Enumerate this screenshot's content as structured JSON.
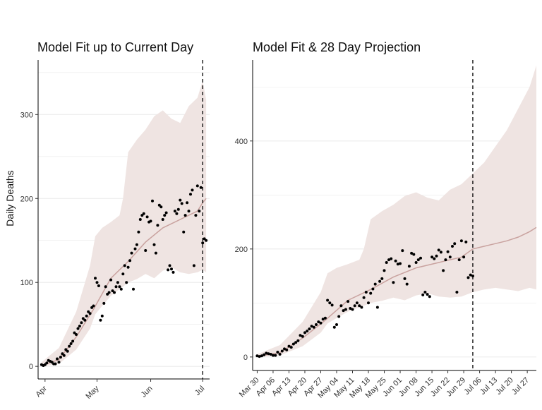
{
  "chart_data": [
    {
      "type": "line",
      "title": "Model Fit up to Current Day",
      "ylabel": "Daily Deaths",
      "xlabel": "",
      "x_tick_labels": [
        "Apr",
        "May",
        "Jun",
        "Jul"
      ],
      "x_tick_days": [
        2,
        32,
        63,
        93
      ],
      "y_ticks": [
        0,
        100,
        200,
        300
      ],
      "xlim_days": [
        -2,
        97
      ],
      "ylim": [
        -15,
        365
      ],
      "current_day": 93,
      "grid": "horizontal",
      "colors": {
        "band": "#efe4e2",
        "median": "#c9a29f",
        "points": "#000000",
        "grid": "#ebebeb"
      },
      "observed": {
        "x": [
          0,
          1,
          2,
          3,
          4,
          5,
          6,
          7,
          8,
          9,
          10,
          11,
          12,
          13,
          14,
          15,
          16,
          17,
          18,
          19,
          20,
          21,
          22,
          23,
          24,
          25,
          26,
          27,
          28,
          29,
          30,
          31,
          32,
          33,
          34,
          35,
          36,
          37,
          38,
          39,
          40,
          41,
          42,
          43,
          44,
          45,
          46,
          47,
          48,
          49,
          50,
          51,
          52,
          53,
          54,
          55,
          56,
          57,
          58,
          59,
          60,
          61,
          62,
          63,
          64,
          65,
          66,
          67,
          68,
          69,
          70,
          71,
          72,
          73,
          74,
          75,
          76,
          77,
          78,
          79,
          80,
          81,
          82,
          83,
          84,
          85,
          86,
          87,
          88,
          89,
          90,
          91,
          92,
          93,
          94,
          95
        ],
        "y": [
          2,
          1,
          2,
          4,
          7,
          6,
          5,
          3,
          3,
          9,
          5,
          11,
          15,
          13,
          20,
          18,
          24,
          27,
          30,
          40,
          38,
          45,
          48,
          52,
          57,
          55,
          60,
          65,
          63,
          70,
          72,
          105,
          100,
          96,
          55,
          60,
          75,
          95,
          86,
          88,
          103,
          90,
          88,
          95,
          100,
          95,
          92,
          110,
          120,
          100,
          118,
          126,
          135,
          92,
          140,
          145,
          160,
          175,
          180,
          182,
          138,
          178,
          172,
          173,
          197,
          145,
          135,
          168,
          192,
          190,
          175,
          180,
          183,
          115,
          120,
          116,
          112,
          185,
          182,
          187,
          198,
          194,
          160,
          180,
          195,
          185,
          205,
          210,
          120,
          180,
          215,
          185,
          213,
          147,
          152,
          150
        ]
      },
      "median": {
        "x": [
          0,
          10,
          20,
          30,
          40,
          50,
          60,
          70,
          80,
          85,
          90,
          93,
          95
        ],
        "y": [
          1,
          8,
          35,
          68,
          105,
          125,
          148,
          165,
          175,
          180,
          185,
          195,
          200
        ]
      },
      "band": {
        "x": [
          0,
          10,
          20,
          28,
          31,
          35,
          40,
          45,
          47,
          50,
          55,
          60,
          65,
          70,
          75,
          80,
          85,
          90,
          93,
          95
        ],
        "lower": [
          0,
          3,
          20,
          45,
          62,
          72,
          84,
          92,
          95,
          100,
          104,
          110,
          105,
          114,
          118,
          112,
          110,
          112,
          115,
          112
        ],
        "upper": [
          5,
          22,
          65,
          120,
          155,
          165,
          172,
          180,
          200,
          255,
          270,
          282,
          298,
          305,
          295,
          290,
          310,
          320,
          340,
          318
        ]
      }
    },
    {
      "type": "line",
      "title": "Model Fit & 28 Day Projection",
      "ylabel": "",
      "xlabel": "",
      "x_tick_labels": [
        "Mar 30",
        "Apr 06",
        "Apr 13",
        "Apr 20",
        "Apr 27",
        "May 04",
        "May 11",
        "May 18",
        "May 25",
        "Jun 01",
        "Jun 08",
        "Jun 15",
        "Jun 22",
        "Jun 29",
        "Jul 06",
        "Jul 13",
        "Jul 20",
        "Jul 27"
      ],
      "x_tick_days": [
        0,
        7,
        14,
        21,
        28,
        35,
        42,
        49,
        56,
        63,
        70,
        77,
        84,
        91,
        98,
        105,
        112,
        119
      ],
      "y_ticks": [
        0,
        200,
        400
      ],
      "xlim_days": [
        -2,
        123
      ],
      "ylim": [
        -25,
        550
      ],
      "current_day": 95,
      "grid": "horizontal",
      "colors": {
        "band": "#efe4e2",
        "median": "#c9a29f",
        "points": "#000000",
        "grid": "#ebebeb"
      },
      "observed": {
        "x": [
          0,
          1,
          2,
          3,
          4,
          5,
          6,
          7,
          8,
          9,
          10,
          11,
          12,
          13,
          14,
          15,
          16,
          17,
          18,
          19,
          20,
          21,
          22,
          23,
          24,
          25,
          26,
          27,
          28,
          29,
          30,
          31,
          32,
          33,
          34,
          35,
          36,
          37,
          38,
          39,
          40,
          41,
          42,
          43,
          44,
          45,
          46,
          47,
          48,
          49,
          50,
          51,
          52,
          53,
          54,
          55,
          56,
          57,
          58,
          59,
          60,
          61,
          62,
          63,
          64,
          65,
          66,
          67,
          68,
          69,
          70,
          71,
          72,
          73,
          74,
          75,
          76,
          77,
          78,
          79,
          80,
          81,
          82,
          83,
          84,
          85,
          86,
          87,
          88,
          89,
          90,
          91,
          92,
          93,
          94,
          95
        ],
        "y": [
          2,
          1,
          2,
          4,
          7,
          6,
          5,
          3,
          3,
          9,
          5,
          11,
          15,
          13,
          20,
          18,
          24,
          27,
          30,
          40,
          38,
          45,
          48,
          52,
          57,
          55,
          60,
          65,
          63,
          70,
          72,
          105,
          100,
          96,
          55,
          60,
          75,
          95,
          86,
          88,
          103,
          90,
          88,
          95,
          100,
          95,
          92,
          110,
          120,
          100,
          118,
          126,
          135,
          92,
          140,
          145,
          160,
          175,
          180,
          182,
          138,
          178,
          172,
          173,
          197,
          145,
          135,
          168,
          192,
          190,
          175,
          180,
          183,
          115,
          120,
          116,
          112,
          185,
          182,
          187,
          198,
          194,
          160,
          180,
          195,
          185,
          205,
          210,
          120,
          180,
          215,
          185,
          213,
          147,
          152,
          150
        ]
      },
      "median": {
        "x": [
          0,
          10,
          20,
          30,
          40,
          50,
          60,
          70,
          80,
          85,
          90,
          95,
          100,
          105,
          110,
          115,
          120,
          123
        ],
        "y": [
          1,
          8,
          35,
          68,
          105,
          125,
          148,
          165,
          175,
          180,
          185,
          200,
          205,
          210,
          215,
          222,
          232,
          240
        ]
      },
      "band": {
        "x": [
          0,
          10,
          20,
          28,
          31,
          35,
          40,
          45,
          47,
          50,
          55,
          60,
          65,
          70,
          75,
          80,
          85,
          90,
          95,
          100,
          105,
          110,
          115,
          120,
          123
        ],
        "lower": [
          0,
          3,
          20,
          45,
          62,
          72,
          84,
          92,
          95,
          100,
          104,
          110,
          105,
          114,
          118,
          112,
          110,
          112,
          120,
          125,
          128,
          125,
          122,
          128,
          125
        ],
        "upper": [
          5,
          22,
          65,
          120,
          155,
          165,
          172,
          180,
          200,
          255,
          270,
          282,
          298,
          305,
          295,
          290,
          310,
          320,
          340,
          360,
          390,
          420,
          460,
          500,
          540
        ]
      }
    }
  ]
}
